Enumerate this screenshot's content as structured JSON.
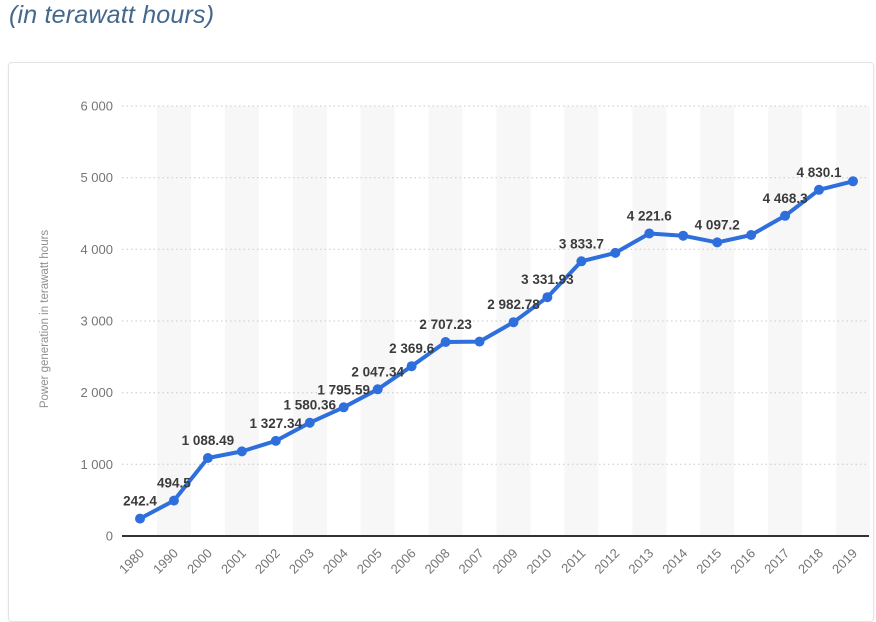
{
  "header": {
    "subtitle_note": "(in terawatt hours)"
  },
  "chart_data": {
    "type": "line",
    "title": "(in terawatt hours)",
    "ylabel": "Power generation in terawatt hours",
    "categories": [
      "1980",
      "1990",
      "2000",
      "2001",
      "2002",
      "2003",
      "2004",
      "2005",
      "2006",
      "2008",
      "2007",
      "2009",
      "2010",
      "2011",
      "2012",
      "2013",
      "2014",
      "2015",
      "2016",
      "2017",
      "2018",
      "2019"
    ],
    "values": [
      242.4,
      494.5,
      1088.49,
      1180,
      1327.34,
      1580.36,
      1795.59,
      2047.34,
      2369.6,
      2707.23,
      2713,
      2982.78,
      3331.93,
      3833.7,
      3950,
      4221.6,
      4190,
      4097.2,
      4200,
      4468.3,
      4830.1,
      4950
    ],
    "point_labels": [
      "242.4",
      "494.5",
      "1 088.49",
      "",
      "1 327.34",
      "1 580.36",
      "1 795.59",
      "2 047.34",
      "2 369.6",
      "2 707.23",
      "",
      "2 982.78",
      "3 331.93",
      "3 833.7",
      "",
      "4 221.6",
      "",
      "4 097.2",
      "",
      "4 468.3",
      "4 830.1",
      ""
    ],
    "y_ticks": [
      "0",
      "1 000",
      "2 000",
      "3 000",
      "4 000",
      "5 000",
      "6 000"
    ],
    "ylim": [
      0,
      6000
    ],
    "grid": "horizontal-dotted",
    "legend": "none",
    "colors": {
      "line": "#2e6fdd",
      "marker": "#2e6fdd",
      "data_label": "#3b3b3b",
      "tick_label": "#757575",
      "axis_title": "#8f8f8f",
      "gridline": "#c9c9c9",
      "baseline": "#333333",
      "stripe": "#f7f7f7",
      "title": "#44678d"
    }
  }
}
